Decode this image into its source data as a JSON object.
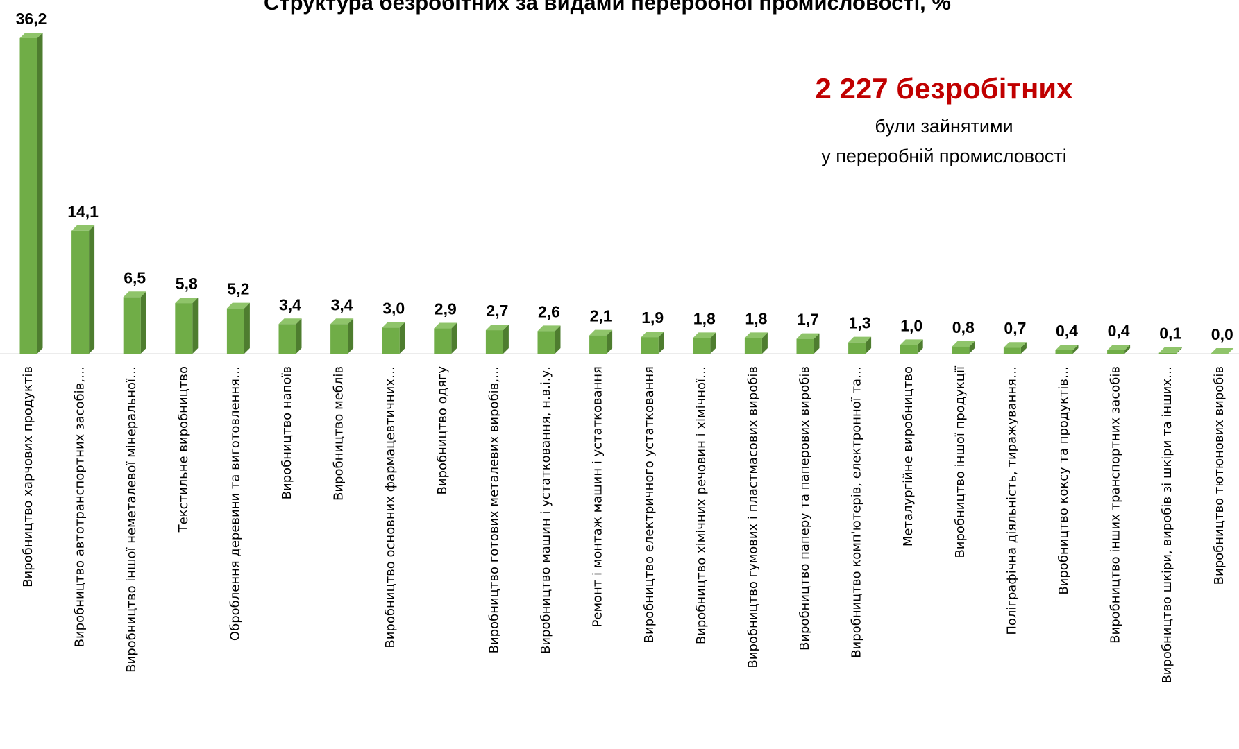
{
  "chart_data": {
    "type": "bar",
    "title": "Структура безробітних за видами переробної промисловості, %",
    "annotation": {
      "headline": "2 227 безробітних",
      "lines": [
        "були зайнятими",
        "у переробній промисловості"
      ]
    },
    "color": "#70ad47",
    "categories": [
      "Виробництво харчових продуктів",
      "Виробництво автотранспортних засобів,…",
      "Виробництво іншої неметалевої мінеральної…",
      "Текстильне виробництво",
      "Оброблення деревини та виготовлення…",
      "Виробництво напоїв",
      "Виробництво меблів",
      "Виробництво основних фармацевтичних…",
      "Виробництво одягу",
      "Виробництво готових металевих виробів,…",
      "Виробництво машин і устатковання, н.в.і.у.",
      "Ремонт і монтаж машин і устатковання",
      "Виробництво електричного устатковання",
      "Виробництво хімічних речовин і хімічної…",
      "Виробництво гумових і пластмасових виробів",
      "Виробництво паперу та паперових виробів",
      "Виробництво комп'ютерів, електронної та…",
      "Металургійне виробництво",
      "Виробництво іншої продукції",
      "Поліграфічна діяльність, тиражування…",
      "Виробництво коксу та продуктів…",
      "Виробництво інших транспортних засобів",
      "Виробництво шкіри, виробів зі шкіри та інших…",
      "Виробництво тютюнових виробів"
    ],
    "values": [
      36.2,
      14.1,
      6.5,
      5.8,
      5.2,
      3.4,
      3.4,
      3.0,
      2.9,
      2.7,
      2.6,
      2.1,
      1.9,
      1.8,
      1.8,
      1.7,
      1.3,
      1.0,
      0.8,
      0.7,
      0.4,
      0.4,
      0.1,
      0.0
    ],
    "value_labels": [
      "36,2",
      "14,1",
      "6,5",
      "5,8",
      "5,2",
      "3,4",
      "3,4",
      "3,0",
      "2,9",
      "2,7",
      "2,6",
      "2,1",
      "1,9",
      "1,8",
      "1,8",
      "1,7",
      "1,3",
      "1,0",
      "0,8",
      "0,7",
      "0,4",
      "0,4",
      "0,1",
      "0,0"
    ]
  }
}
